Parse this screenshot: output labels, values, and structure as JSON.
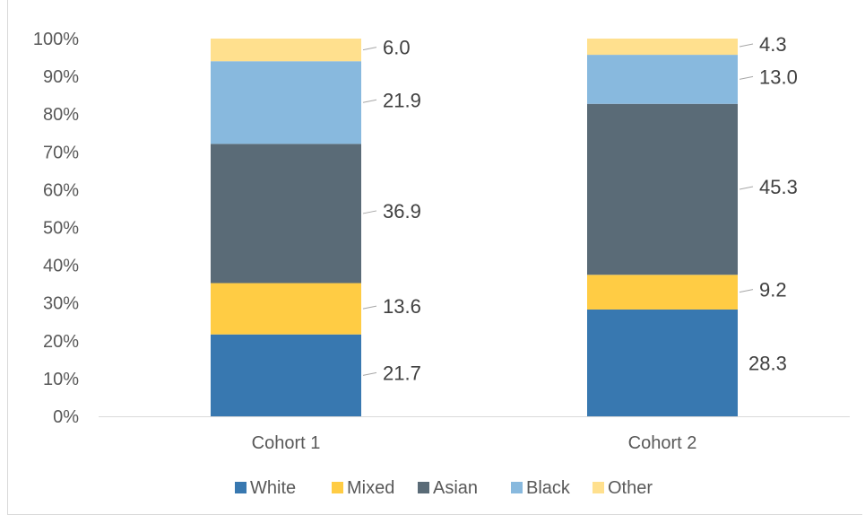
{
  "chart_data": {
    "type": "bar",
    "stacked": "percent",
    "categories": [
      "Cohort 1",
      "Cohort 2"
    ],
    "series": [
      {
        "name": "White",
        "values": [
          21.7,
          28.3
        ],
        "color": "#3878b0"
      },
      {
        "name": "Mixed",
        "values": [
          13.6,
          9.2
        ],
        "color": "#ffcc44"
      },
      {
        "name": "Asian",
        "values": [
          36.9,
          45.3
        ],
        "color": "#5a6b77"
      },
      {
        "name": "Black",
        "values": [
          21.9,
          13.0
        ],
        "color": "#88b9de"
      },
      {
        "name": "Other",
        "values": [
          6.0,
          4.3
        ],
        "color": "#ffe08e"
      }
    ],
    "data_labels": [
      [
        "21.7",
        "28.3"
      ],
      [
        "13.6",
        "9.2"
      ],
      [
        "36.9",
        "45.3"
      ],
      [
        "21.9",
        "13.0"
      ],
      [
        "6.0",
        "4.3"
      ]
    ],
    "yticks": [
      "0%",
      "10%",
      "20%",
      "30%",
      "40%",
      "50%",
      "60%",
      "70%",
      "80%",
      "90%",
      "100%"
    ],
    "ylim": [
      0,
      100
    ],
    "grid": false,
    "legend_position": "bottom"
  }
}
